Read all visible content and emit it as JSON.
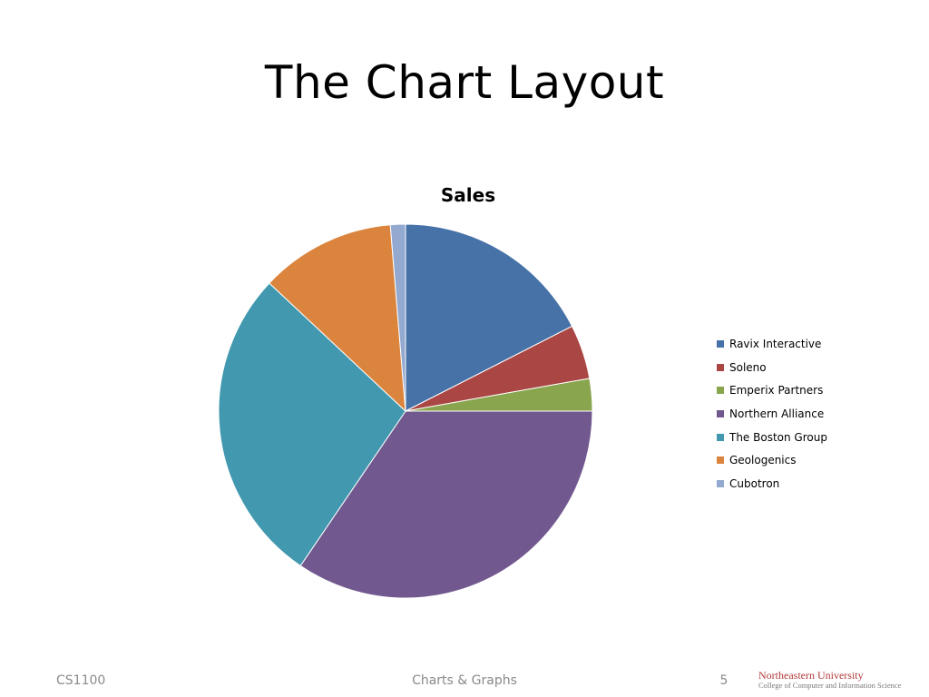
{
  "slide": {
    "title": "The Chart Layout"
  },
  "chart_data": {
    "type": "pie",
    "title": "Sales",
    "categories": [
      "Ravix Interactive",
      "Soleno",
      "Emperix Partners",
      "Northern Alliance",
      "The Boston Group",
      "Geologenics",
      "Cubotron"
    ],
    "values": [
      17.5,
      4.7,
      2.8,
      34.5,
      27.5,
      11.7,
      1.3
    ],
    "colors": [
      "#4672A8",
      "#AA4643",
      "#89A54E",
      "#71588F",
      "#4198AF",
      "#DB843D",
      "#93A9CF"
    ],
    "legend_position": "right"
  },
  "footer": {
    "course": "CS1100",
    "topic": "Charts & Graphs",
    "page_number": "5"
  },
  "logo": {
    "name": "Northeastern University",
    "subtitle": "College of Computer and Information Science"
  }
}
